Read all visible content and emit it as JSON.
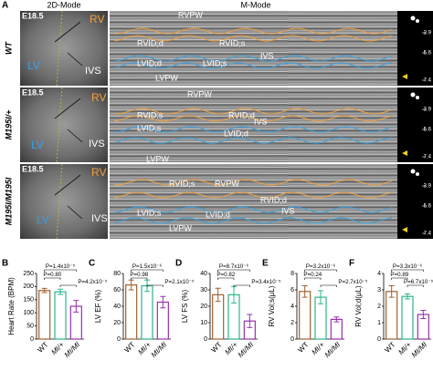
{
  "panel_a": {
    "label": "A",
    "modes": [
      "2D-Mode",
      "M-Mode"
    ],
    "rows": [
      {
        "genotype": "WT",
        "age": "E18.5",
        "labels_2d": [
          "RV",
          "LV",
          "IVS"
        ],
        "labels_m": [
          "RVPW",
          "RVID;d",
          "RVID;s",
          "LVID;d",
          "LVID;s",
          "IVS",
          "LVPW"
        ],
        "scale": [
          3.9,
          5.6,
          7.4
        ]
      },
      {
        "genotype": "M195I/+",
        "age": "E18.5",
        "labels_2d": [
          "RV",
          "LV",
          "IVS"
        ],
        "labels_m": [
          "RVPW",
          "RVID;s",
          "RVID;d",
          "IVS",
          "LVID;s",
          "LVID;d",
          "LVPW"
        ],
        "scale": [
          3.9,
          5.6,
          7.4
        ]
      },
      {
        "genotype": "M195I/M195I",
        "age": "E18.5",
        "labels_2d": [
          "RV",
          "LV",
          "IVS"
        ],
        "labels_m": [
          "RVID;s",
          "RVPW",
          "RVID;d",
          "IVS",
          "LVID;s",
          "LVID;d",
          "LVPW"
        ],
        "scale": [
          3.9,
          5.6,
          7.4
        ]
      }
    ]
  },
  "chart_data": [
    {
      "type": "bar",
      "panel": "B",
      "ylabel": "Heart Rate (BPM)",
      "categories": [
        "WT",
        "MI/+",
        "MI/MI"
      ],
      "values": [
        185,
        180,
        125
      ],
      "errors": [
        8,
        10,
        22
      ],
      "colors": [
        "#a0612e",
        "#2bb58e",
        "#9a2fae"
      ],
      "ylim": [
        0,
        250
      ],
      "yticks": [
        0,
        50,
        100,
        150,
        200,
        250
      ],
      "pvalues": [
        "P=1.4x10⁻⁵",
        "P=0.80",
        "P=4.2x10⁻⁵"
      ]
    },
    {
      "type": "bar",
      "panel": "C",
      "ylabel": "LV EF (%)",
      "categories": [
        "WT",
        "MI/+",
        "MI/MI"
      ],
      "values": [
        66,
        65,
        45
      ],
      "errors": [
        6,
        7,
        7
      ],
      "colors": [
        "#a0612e",
        "#2bb58e",
        "#9a2fae"
      ],
      "ylim": [
        0,
        80
      ],
      "yticks": [
        0,
        20,
        40,
        60,
        80
      ],
      "pvalues": [
        "P=1.5x10⁻⁶",
        "P=0.98",
        "P=2.1x10⁻⁵"
      ]
    },
    {
      "type": "bar",
      "panel": "D",
      "ylabel": "LV FS (%)",
      "categories": [
        "WT",
        "MI/+",
        "MI/MI"
      ],
      "values": [
        27,
        27,
        11
      ],
      "errors": [
        4,
        5,
        4
      ],
      "colors": [
        "#a0612e",
        "#2bb58e",
        "#9a2fae"
      ],
      "ylim": [
        0,
        40
      ],
      "yticks": [
        0,
        10,
        20,
        30,
        40
      ],
      "pvalues": [
        "P=8.7x10⁻⁶",
        "P=0.82",
        "P=3.4x10⁻⁵"
      ]
    },
    {
      "type": "bar",
      "panel": "E",
      "ylabel": "RV Vol;s(µL)",
      "categories": [
        "WT",
        "MI/+",
        "MI/MI"
      ],
      "values": [
        5.8,
        5.1,
        2.4
      ],
      "errors": [
        0.7,
        0.8,
        0.3
      ],
      "colors": [
        "#a0612e",
        "#2bb58e",
        "#9a2fae"
      ],
      "ylim": [
        0,
        8
      ],
      "yticks": [
        0,
        2,
        4,
        6,
        8
      ],
      "pvalues": [
        "P=3.2x10⁻⁶",
        "P=0.24",
        "P=2.7x10⁻⁵"
      ]
    },
    {
      "type": "bar",
      "panel": "F",
      "ylabel": "RV Vol;d(µL)",
      "categories": [
        "WT",
        "MI/+",
        "MI/MI"
      ],
      "values": [
        2.9,
        2.6,
        1.5
      ],
      "errors": [
        0.35,
        0.15,
        0.25
      ],
      "colors": [
        "#a0612e",
        "#2bb58e",
        "#9a2fae"
      ],
      "ylim": [
        0,
        4
      ],
      "yticks": [
        0,
        1,
        2,
        3,
        4
      ],
      "pvalues": [
        "P=3.3x10⁻⁶",
        "P=0.89",
        "P=6.7x10⁻⁵"
      ]
    }
  ]
}
